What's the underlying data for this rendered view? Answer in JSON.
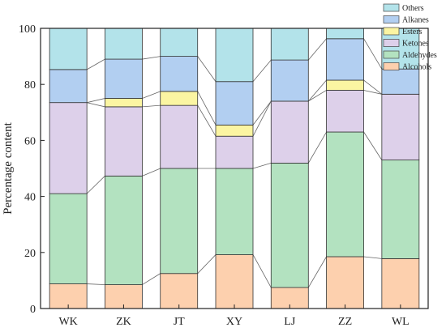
{
  "chart_data": {
    "type": "bar",
    "stacked": true,
    "categories": [
      "WK",
      "ZK",
      "JT",
      "XY",
      "LJ",
      "ZZ",
      "WL"
    ],
    "ylabel": "Percentage content",
    "xlabel": "",
    "ylim": [
      0,
      100
    ],
    "yticks": [
      0,
      20,
      40,
      60,
      80,
      100
    ],
    "legend_position": "top-right",
    "connectors": true,
    "series": [
      {
        "name": "Alcohols",
        "color": "#fdd0ae",
        "values": [
          8.8,
          8.5,
          12.5,
          19.2,
          7.5,
          18.5,
          17.8
        ]
      },
      {
        "name": "Aldehydes",
        "color": "#b3e2c0",
        "values": [
          32.2,
          38.8,
          37.5,
          30.8,
          44.4,
          44.5,
          35.2
        ]
      },
      {
        "name": "Ketones",
        "color": "#ddd0ea",
        "values": [
          32.5,
          24.7,
          22.5,
          11.5,
          22.1,
          14.9,
          23.5
        ]
      },
      {
        "name": "Esters",
        "color": "#fbf5a2",
        "values": [
          0.0,
          3.0,
          5.0,
          4.0,
          0.0,
          3.6,
          0.0
        ]
      },
      {
        "name": "Alkanes",
        "color": "#b2cff1",
        "values": [
          11.8,
          14.0,
          12.5,
          15.5,
          14.7,
          14.8,
          9.0
        ]
      },
      {
        "name": "Others",
        "color": "#b3e3ea",
        "values": [
          14.7,
          11.0,
          10.0,
          19.0,
          11.3,
          3.7,
          14.5
        ]
      }
    ]
  }
}
